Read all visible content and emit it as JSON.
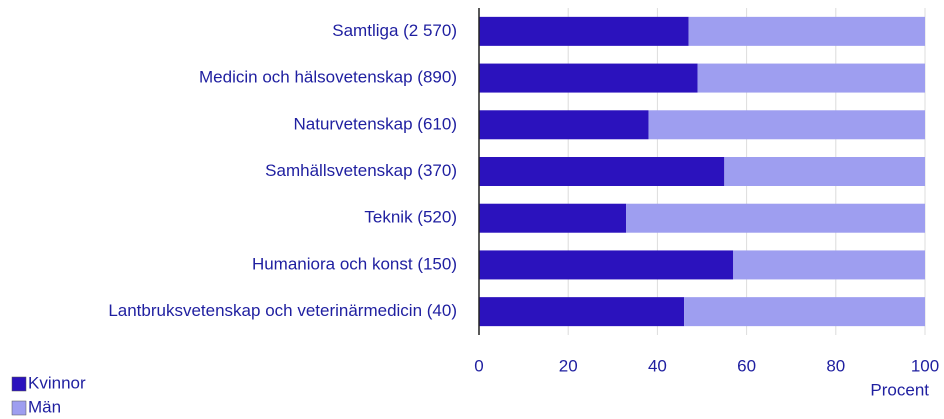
{
  "chart_data": {
    "type": "stacked-barh",
    "categories": [
      "Samtliga (2 570)",
      "Medicin och hälsovetenskap (890)",
      "Naturvetenskap (610)",
      "Samhällsvetenskap (370)",
      "Teknik (520)",
      "Humaniora och konst (150)",
      "Lantbruksvetenskap och veterinärmedicin (40)"
    ],
    "series": [
      {
        "name": "Kvinnor",
        "color": "#2b12bd",
        "values": [
          47,
          49,
          38,
          55,
          33,
          57,
          46
        ]
      },
      {
        "name": "Män",
        "color": "#9e9ef0",
        "values": [
          53,
          51,
          62,
          45,
          67,
          43,
          54
        ]
      }
    ],
    "xlim": [
      0,
      100
    ],
    "xticks": [
      0,
      20,
      40,
      60,
      80,
      100
    ],
    "xlabel": "Procent",
    "grid": true,
    "legend": "bottom-left"
  }
}
